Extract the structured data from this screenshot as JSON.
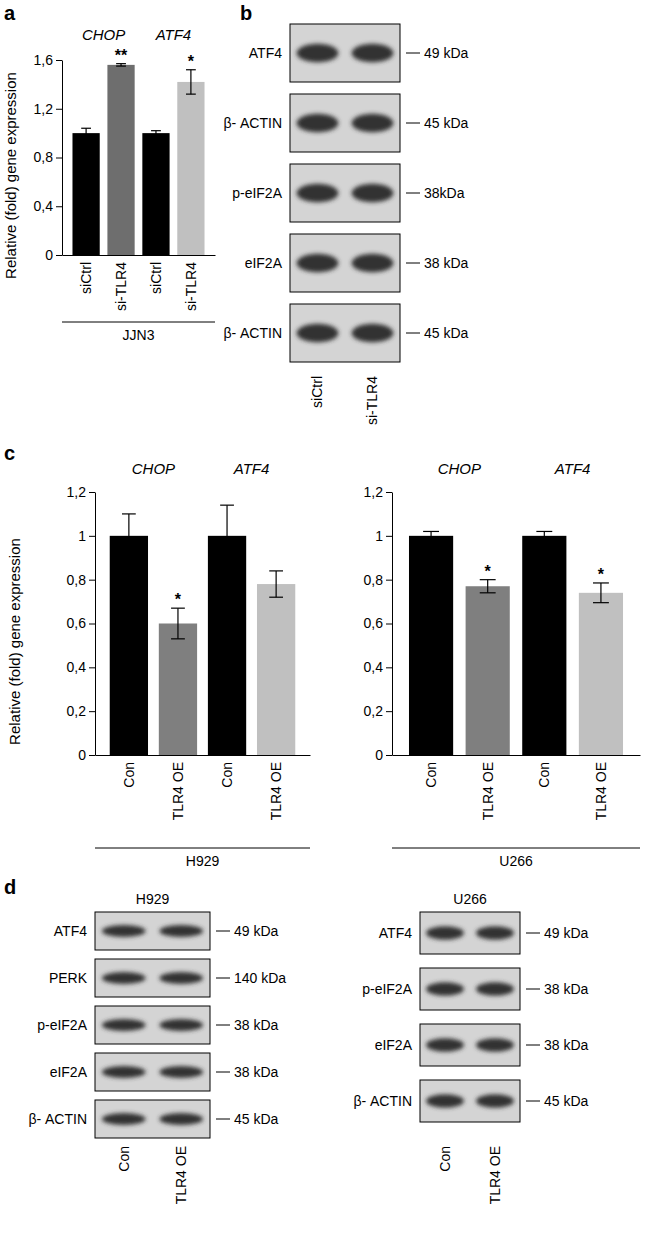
{
  "chart_data": [
    {
      "type": "bar",
      "categories": [
        "siCtrl",
        "si-TLR4",
        "siCtrl",
        "si-TLR4"
      ],
      "values": [
        1,
        1.56,
        1,
        1.42
      ],
      "errors": [
        0.04,
        0.01,
        0.02,
        0.1
      ],
      "colors": [
        "#000000",
        "#6e6e6e",
        "#000000",
        "#c0c0c0"
      ],
      "group_labels": [
        "CHOP",
        "ATF4"
      ],
      "x_label": "JJN3",
      "y_label": "Relative (fold) gene expression",
      "ylim": [
        0,
        1.6
      ],
      "yticks": [
        0,
        {
          "value": 0.4,
          "label": "0,4"
        },
        {
          "value": 0.8,
          "label": "0,8"
        },
        {
          "value": 1.2,
          "label": "1,2"
        },
        {
          "value": 1.6,
          "label": "1,6"
        }
      ],
      "annotations": [
        {
          "category": 1,
          "text": "**"
        },
        {
          "category": 3,
          "text": "*"
        }
      ]
    },
    {
      "type": "bar",
      "categories": [
        "Con",
        "TLR4 OE",
        "Con",
        "TLR4 OE"
      ],
      "values": [
        1,
        0.6,
        1,
        0.78
      ],
      "errors": [
        0.1,
        0.07,
        0.14,
        0.06
      ],
      "colors": [
        "#000000",
        "#7f7f7f",
        "#000000",
        "#c0c0c0"
      ],
      "group_labels": [
        "CHOP",
        "ATF4"
      ],
      "x_label": "H929",
      "y_label": "Relative (fold) gene expression",
      "ylim": [
        0,
        1.2
      ],
      "yticks": [
        0,
        {
          "value": 0.2,
          "label": "0,2"
        },
        {
          "value": 0.4,
          "label": "0,4"
        },
        {
          "value": 0.6,
          "label": "0,6"
        },
        {
          "value": 0.8,
          "label": "0,8"
        },
        1,
        {
          "value": 1.2,
          "label": "1,2"
        }
      ],
      "annotations": [
        {
          "category": 1,
          "text": "*"
        }
      ]
    },
    {
      "type": "bar",
      "categories": [
        "Con",
        "TLR4 OE",
        "Con",
        "TLR4 OE"
      ],
      "values": [
        1,
        0.77,
        1,
        0.74
      ],
      "errors": [
        0.02,
        0.03,
        0.02,
        0.045
      ],
      "colors": [
        "#000000",
        "#7f7f7f",
        "#000000",
        "#c0c0c0"
      ],
      "group_labels": [
        "CHOP",
        "ATF4"
      ],
      "x_label": "U266",
      "ylim": [
        0,
        1.2
      ],
      "yticks": [
        0,
        {
          "value": 0.2,
          "label": "0,2"
        },
        {
          "value": 0.4,
          "label": "0,4"
        },
        {
          "value": 0.6,
          "label": "0,6"
        },
        {
          "value": 0.8,
          "label": "0,8"
        },
        1,
        {
          "value": 1.2,
          "label": "1,2"
        }
      ],
      "annotations": [
        {
          "category": 1,
          "text": "*"
        },
        {
          "category": 3,
          "text": "*"
        }
      ]
    }
  ],
  "blots": [
    {
      "rows": [
        {
          "protein": "ATF4",
          "size": "49 kDa"
        },
        {
          "protein": "β- ACTIN",
          "size": "45 kDa"
        },
        {
          "protein": "p-eIF2A",
          "size": "38kDa"
        },
        {
          "protein": "eIF2A",
          "size": "38 kDa"
        },
        {
          "protein": "β- ACTIN",
          "size": "45 kDa"
        }
      ],
      "lanes": [
        "siCtrl",
        "si-TLR4"
      ]
    },
    {
      "title": "H929",
      "rows": [
        {
          "protein": "ATF4",
          "size": "49 kDa"
        },
        {
          "protein": "PERK",
          "size": "140 kDa"
        },
        {
          "protein": "p-eIF2A",
          "size": "38 kDa"
        },
        {
          "protein": "eIF2A",
          "size": "38 kDa"
        },
        {
          "protein": "β- ACTIN",
          "size": "45 kDa"
        }
      ],
      "lanes": [
        "Con",
        "TLR4 OE"
      ]
    },
    {
      "title": "U266",
      "rows": [
        {
          "protein": "ATF4",
          "size": "49 kDa"
        },
        {
          "protein": "p-eIF2A",
          "size": "38 kDa"
        },
        {
          "protein": "eIF2A",
          "size": "38 kDa"
        },
        {
          "protein": "β- ACTIN",
          "size": "45 kDa"
        }
      ],
      "lanes": [
        "Con",
        "TLR4 OE"
      ]
    }
  ],
  "panel_labels": [
    "a",
    "b",
    "c",
    "d"
  ]
}
